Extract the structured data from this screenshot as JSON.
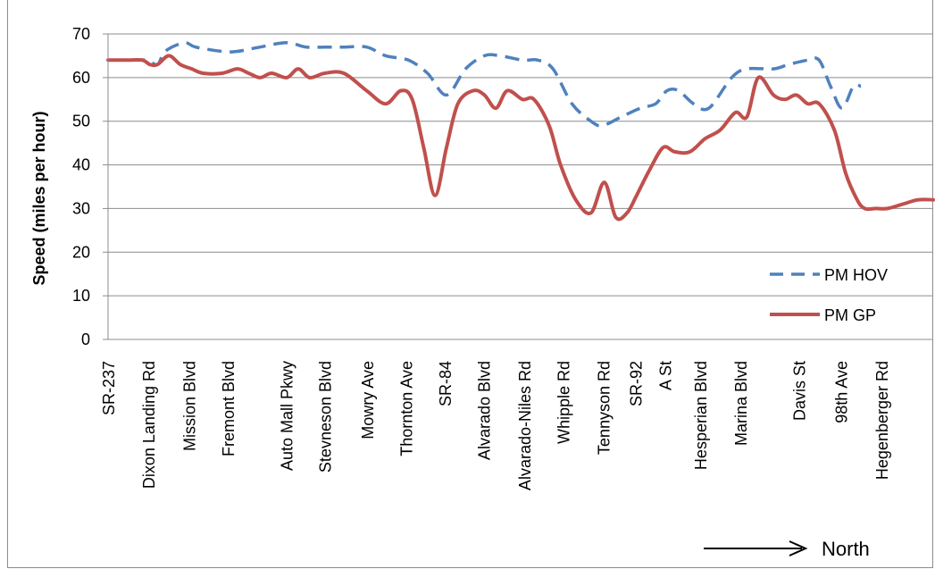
{
  "chart_data": {
    "type": "line",
    "ylabel": "Speed (miles per hour)",
    "xlabel": "",
    "title": "",
    "ylim": [
      0,
      70
    ],
    "yticks": [
      0,
      10,
      20,
      30,
      40,
      50,
      60,
      70
    ],
    "grid": "horizontal",
    "legend_position": "lower-right",
    "categories": [
      "SR-237",
      "Dixon Landing Rd",
      "Mission Blvd",
      "Fremont Blvd",
      "Auto Mall Pkwy",
      "Stevneson Blvd",
      "Mowry Ave",
      "Thornton Ave",
      "SR-84",
      "Alvarado Blvd",
      "Alvarado-Niles Rd",
      "Whipple Rd",
      "Tennyson Rd",
      "SR-92",
      "A St",
      "Hesperian Blvd",
      "Marina Blvd",
      "Davis St",
      "98th Ave",
      "Hegenberger Rd"
    ],
    "category_positions_miles": [
      0,
      1.06,
      2.13,
      3.15,
      4.68,
      5.7,
      6.81,
      7.83,
      8.85,
      9.87,
      10.94,
      11.96,
      13.02,
      13.87,
      14.64,
      15.57,
      16.63,
      18.16,
      19.27,
      20.34
    ],
    "x_max_miles": 21.7,
    "series": [
      {
        "name": "PM HOV",
        "color": "#4f81bd",
        "dash": "dashed",
        "x": [
          0,
          0.5,
          1.0,
          1.3,
          1.5,
          2.0,
          2.3,
          3.0,
          3.4,
          4.0,
          4.7,
          5.2,
          5.7,
          6.2,
          6.8,
          7.3,
          7.9,
          8.4,
          8.9,
          9.4,
          9.9,
          10.3,
          10.9,
          11.3,
          11.7,
          12.2,
          12.7,
          13.0,
          13.5,
          14.0,
          14.4,
          14.7,
          15.0,
          15.4,
          15.8,
          16.4,
          16.8,
          17.5,
          17.9,
          18.4,
          18.7,
          19.0,
          19.3,
          19.6,
          19.8
        ],
        "y": [
          64,
          64,
          64,
          63,
          66,
          68,
          67,
          66,
          66,
          67,
          68,
          67,
          67,
          67,
          67,
          65,
          64,
          61,
          56,
          62,
          65,
          65,
          64,
          64,
          62,
          54,
          50,
          49,
          51,
          53,
          54,
          57,
          57,
          54,
          53,
          60,
          62,
          62,
          63,
          64,
          64,
          58,
          53,
          58,
          58
        ]
      },
      {
        "name": "PM GP",
        "color": "#c0504d",
        "dash": "solid",
        "x": [
          0,
          0.5,
          0.9,
          1.1,
          1.3,
          1.6,
          1.9,
          2.2,
          2.5,
          3.0,
          3.4,
          3.7,
          4.0,
          4.3,
          4.7,
          5.0,
          5.3,
          5.7,
          6.2,
          6.8,
          7.3,
          7.7,
          8.0,
          8.3,
          8.6,
          8.9,
          9.2,
          9.6,
          9.9,
          10.2,
          10.5,
          10.9,
          11.2,
          11.6,
          11.9,
          12.3,
          12.7,
          13.05,
          13.35,
          13.65,
          13.9,
          14.25,
          14.6,
          14.9,
          15.3,
          15.7,
          16.1,
          16.5,
          16.8,
          17.1,
          17.5,
          17.8,
          18.1,
          18.4,
          18.7,
          19.1,
          19.4,
          19.7,
          19.9,
          20.2,
          20.5,
          20.9,
          21.3,
          21.7
        ],
        "y": [
          64,
          64,
          64,
          63,
          63,
          65,
          63,
          62,
          61,
          61,
          62,
          61,
          60,
          61,
          60,
          62,
          60,
          61,
          61,
          57,
          54,
          57,
          55,
          44,
          33,
          44,
          54,
          57,
          56,
          53,
          57,
          55,
          55,
          49,
          40,
          32,
          29,
          36,
          28,
          29,
          33,
          39,
          44,
          43,
          43,
          46,
          48,
          52,
          51,
          60,
          56,
          55,
          56,
          54,
          54,
          48,
          38,
          32,
          30,
          30,
          30,
          31,
          32,
          32
        ]
      }
    ],
    "annotation": {
      "text": "North"
    }
  }
}
